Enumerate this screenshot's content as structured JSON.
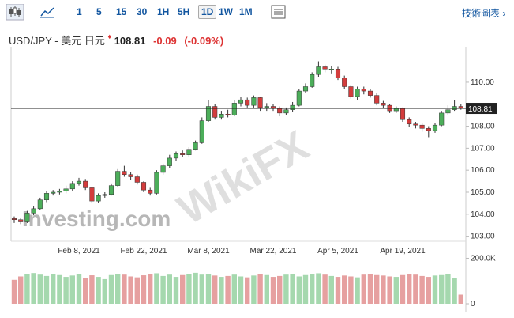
{
  "toolbar": {
    "intervals": [
      "1",
      "5",
      "15",
      "30",
      "1H",
      "5H",
      "1D",
      "1W",
      "1M"
    ],
    "selected": "1D",
    "link": "技術圖表 ›"
  },
  "header": {
    "pair": "USD/JPY - 美元 日元",
    "price": "108.81",
    "change": "-0.09",
    "change_pct": "(-0.09%)"
  },
  "watermarks": [
    "WikiFX",
    "Investing.com"
  ],
  "chart_data": {
    "type": "candlestick",
    "categories": [
      null,
      null,
      null,
      null,
      null,
      null,
      null,
      null,
      null,
      null,
      "Feb 8, 2021",
      null,
      null,
      null,
      null,
      null,
      null,
      null,
      null,
      null,
      "Feb 22, 2021",
      null,
      null,
      null,
      null,
      null,
      null,
      null,
      null,
      null,
      "Mar 8, 2021",
      null,
      null,
      null,
      null,
      null,
      null,
      null,
      null,
      null,
      "Mar 22, 2021",
      null,
      null,
      null,
      null,
      null,
      null,
      null,
      null,
      null,
      "Apr 5, 2021",
      null,
      null,
      null,
      null,
      null,
      null,
      null,
      null,
      null,
      "Apr 19, 2021",
      null,
      null,
      null,
      null,
      null,
      null,
      null,
      null,
      null
    ],
    "open": [
      103.8,
      103.75,
      103.65,
      104.05,
      104.25,
      104.65,
      104.95,
      105.0,
      105.05,
      105.15,
      105.4,
      105.5,
      105.2,
      104.6,
      104.85,
      104.9,
      105.3,
      105.95,
      105.8,
      105.7,
      105.45,
      105.1,
      104.95,
      105.9,
      106.2,
      106.55,
      106.75,
      106.7,
      106.95,
      107.25,
      108.25,
      108.9,
      108.4,
      108.55,
      108.5,
      109.05,
      109.2,
      108.95,
      109.3,
      108.85,
      108.9,
      108.8,
      108.6,
      108.75,
      108.95,
      109.6,
      109.8,
      110.35,
      110.7,
      110.6,
      110.6,
      110.2,
      109.8,
      109.35,
      109.7,
      109.6,
      109.4,
      109.05,
      108.95,
      108.7,
      108.8,
      108.3,
      108.1,
      108.05,
      107.9,
      107.8,
      108.05,
      108.6,
      108.75,
      108.9
    ],
    "high": [
      103.9,
      103.85,
      104.15,
      104.35,
      104.75,
      105.05,
      105.1,
      105.15,
      105.3,
      105.5,
      105.65,
      105.6,
      105.25,
      104.95,
      105.0,
      105.4,
      106.05,
      106.2,
      105.9,
      105.8,
      105.5,
      105.2,
      106.0,
      106.3,
      106.7,
      106.85,
      106.9,
      107.05,
      107.35,
      108.4,
      109.2,
      109.0,
      108.7,
      108.75,
      109.2,
      109.35,
      109.3,
      109.4,
      109.35,
      109.05,
      109.0,
      108.9,
      108.85,
      109.1,
      109.7,
      109.95,
      110.45,
      110.95,
      110.8,
      110.75,
      110.7,
      110.3,
      109.85,
      109.8,
      109.8,
      109.7,
      109.5,
      109.15,
      109.0,
      108.9,
      108.85,
      108.4,
      108.2,
      108.15,
      108.0,
      108.15,
      108.7,
      108.95,
      109.2,
      109.0
    ],
    "low": [
      103.6,
      103.55,
      103.6,
      103.95,
      104.2,
      104.55,
      104.85,
      104.9,
      104.95,
      105.05,
      105.3,
      105.1,
      104.5,
      104.5,
      104.75,
      104.85,
      105.25,
      105.7,
      105.55,
      105.35,
      105.0,
      104.85,
      104.9,
      105.8,
      106.1,
      106.4,
      106.6,
      106.6,
      106.9,
      107.2,
      108.2,
      108.3,
      108.3,
      108.4,
      108.45,
      108.9,
      108.85,
      108.85,
      108.7,
      108.7,
      108.7,
      108.45,
      108.5,
      108.65,
      108.9,
      109.5,
      109.75,
      110.25,
      110.45,
      110.4,
      110.1,
      109.7,
      109.25,
      109.2,
      109.45,
      109.3,
      108.95,
      108.8,
      108.6,
      108.6,
      108.2,
      107.95,
      107.9,
      107.75,
      107.5,
      107.7,
      108.0,
      108.5,
      108.7,
      108.75
    ],
    "close": [
      103.75,
      103.65,
      104.05,
      104.25,
      104.65,
      104.95,
      105.0,
      105.05,
      105.15,
      105.4,
      105.5,
      105.2,
      104.6,
      104.85,
      104.9,
      105.3,
      105.95,
      105.8,
      105.7,
      105.45,
      105.1,
      104.95,
      105.9,
      106.2,
      106.55,
      106.75,
      106.7,
      106.95,
      107.25,
      108.25,
      108.9,
      108.4,
      108.55,
      108.5,
      109.05,
      109.2,
      108.95,
      109.3,
      108.85,
      108.9,
      108.8,
      108.6,
      108.75,
      108.95,
      109.6,
      109.8,
      110.35,
      110.7,
      110.6,
      110.6,
      110.2,
      109.8,
      109.35,
      109.7,
      109.6,
      109.4,
      109.05,
      108.95,
      108.7,
      108.8,
      108.3,
      108.1,
      108.05,
      107.9,
      107.8,
      108.05,
      108.6,
      108.75,
      108.9,
      108.81
    ],
    "volume": [
      105000,
      120000,
      130000,
      135000,
      128000,
      122000,
      132000,
      126000,
      118000,
      124000,
      130000,
      112000,
      125000,
      118000,
      108000,
      126000,
      132000,
      128000,
      120000,
      116000,
      125000,
      130000,
      134000,
      122000,
      128000,
      118000,
      126000,
      132000,
      136000,
      128000,
      130000,
      124000,
      118000,
      122000,
      128000,
      120000,
      116000,
      124000,
      130000,
      126000,
      118000,
      122000,
      128000,
      132000,
      120000,
      126000,
      130000,
      134000,
      128000,
      122000,
      118000,
      124000,
      120000,
      116000,
      128000,
      130000,
      126000,
      124000,
      120000,
      118000,
      126000,
      130000,
      128000,
      122000,
      118000,
      124000,
      126000,
      130000,
      112000,
      40000
    ],
    "up_color": "#4cae5a",
    "down_color": "#d33c3c",
    "volume_up_color": "#a5d8ae",
    "volume_down_color": "#e6a0a0",
    "ylim": [
      102.77,
      111.58
    ],
    "yticks": [
      {
        "value": 103,
        "label": "103.00"
      },
      {
        "value": 104,
        "label": "104.00"
      },
      {
        "value": 105,
        "label": "105.00"
      },
      {
        "value": 106,
        "label": "106.00"
      },
      {
        "value": 107,
        "label": "107.00"
      },
      {
        "value": 108,
        "label": "108.00"
      },
      {
        "value": 110,
        "label": "110.00"
      }
    ],
    "last_price": 108.81,
    "volume_ylim": [
      0,
      222500
    ],
    "volume_ticks": [
      0,
      {
        "value": 200000,
        "label": "200.0K"
      }
    ]
  }
}
